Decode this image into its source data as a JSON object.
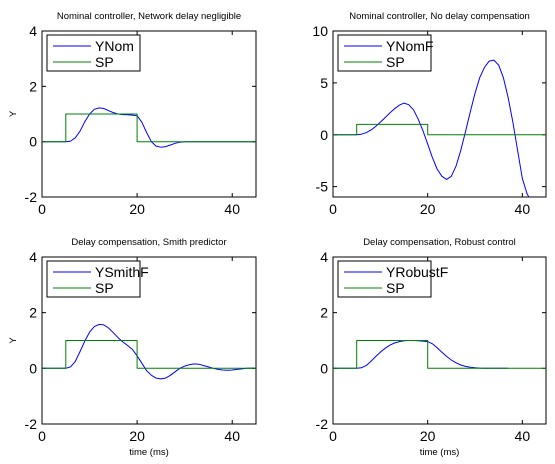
{
  "chart_data": [
    {
      "type": "line",
      "title": "Nominal controller, Network delay negligible",
      "xlabel": "",
      "ylabel": "Y",
      "xlim": [
        0,
        45
      ],
      "ylim": [
        -2,
        4
      ],
      "xticks": [
        0,
        20,
        40
      ],
      "yticks": [
        -2,
        0,
        2,
        4
      ],
      "grid": false,
      "legend": "top-left",
      "series": [
        {
          "name": "YNom",
          "color": "#0000ff",
          "x": [
            0,
            5,
            6,
            7,
            8,
            9,
            10,
            11,
            12,
            13,
            14,
            15,
            16,
            17,
            18,
            19,
            20,
            21,
            22,
            23,
            24,
            25,
            26,
            27,
            28,
            29,
            30,
            32,
            34,
            36,
            38,
            40,
            42,
            45
          ],
          "y": [
            0,
            0,
            0.02,
            0.14,
            0.38,
            0.72,
            1.0,
            1.17,
            1.22,
            1.2,
            1.12,
            1.05,
            1.0,
            0.98,
            0.97,
            0.96,
            0.94,
            0.7,
            0.33,
            0.0,
            -0.16,
            -0.2,
            -0.18,
            -0.12,
            -0.06,
            -0.02,
            0.0,
            0.0,
            0.0,
            0.0,
            0.0,
            0.0,
            0.0,
            0.0
          ]
        },
        {
          "name": "SP",
          "color": "#008000",
          "x": [
            0,
            5,
            5,
            20,
            20,
            45
          ],
          "y": [
            0,
            0,
            1,
            1,
            0,
            0
          ]
        }
      ]
    },
    {
      "type": "line",
      "title": "Nominal controller, No delay compensation",
      "xlabel": "",
      "ylabel": "",
      "xlim": [
        0,
        45
      ],
      "ylim": [
        -6,
        10
      ],
      "xticks": [
        0,
        20,
        40
      ],
      "yticks": [
        -5,
        0,
        5,
        10
      ],
      "grid": false,
      "legend": "top-left",
      "series": [
        {
          "name": "YNomF",
          "color": "#0000ff",
          "x": [
            0,
            5,
            6,
            7,
            8,
            9,
            10,
            11,
            12,
            13,
            14,
            15,
            16,
            17,
            18,
            19,
            20,
            21,
            22,
            23,
            24,
            25,
            26,
            27,
            28,
            29,
            30,
            31,
            32,
            33,
            34,
            35,
            36,
            37,
            38,
            39,
            40,
            41,
            42
          ],
          "y": [
            0,
            0,
            0.05,
            0.2,
            0.45,
            0.8,
            1.2,
            1.65,
            2.1,
            2.5,
            2.85,
            3.05,
            2.9,
            2.4,
            1.5,
            0.4,
            -0.9,
            -2.2,
            -3.3,
            -4.0,
            -4.3,
            -4.0,
            -3.0,
            -1.5,
            0.3,
            2.2,
            4.0,
            5.5,
            6.5,
            7.1,
            7.2,
            6.7,
            5.5,
            3.6,
            1.2,
            -1.5,
            -4.2,
            -5.7,
            -6.5
          ]
        },
        {
          "name": "SP",
          "color": "#008000",
          "x": [
            0,
            5,
            5,
            20,
            20,
            45
          ],
          "y": [
            0,
            0,
            1,
            1,
            0,
            0
          ]
        }
      ]
    },
    {
      "type": "line",
      "title": "Delay compensation, Smith predictor",
      "xlabel": "time (ms)",
      "ylabel": "Y",
      "xlim": [
        0,
        45
      ],
      "ylim": [
        -2,
        4
      ],
      "xticks": [
        0,
        20,
        40
      ],
      "yticks": [
        -2,
        0,
        2,
        4
      ],
      "grid": false,
      "legend": "top-left",
      "series": [
        {
          "name": "YSmithF",
          "color": "#0000ff",
          "x": [
            0,
            5,
            6,
            7,
            8,
            9,
            10,
            11,
            12,
            13,
            14,
            15,
            16,
            17,
            18,
            19,
            20,
            21,
            22,
            23,
            24,
            25,
            26,
            27,
            28,
            29,
            30,
            31,
            32,
            33,
            34,
            35,
            36,
            37,
            38,
            39,
            40,
            41,
            42,
            43,
            44,
            45
          ],
          "y": [
            0,
            0,
            0.05,
            0.25,
            0.6,
            0.98,
            1.3,
            1.5,
            1.58,
            1.56,
            1.45,
            1.28,
            1.1,
            0.95,
            0.82,
            0.68,
            0.45,
            0.18,
            -0.08,
            -0.25,
            -0.35,
            -0.38,
            -0.35,
            -0.25,
            -0.12,
            0.0,
            0.08,
            0.13,
            0.16,
            0.15,
            0.1,
            0.05,
            0.0,
            -0.04,
            -0.06,
            -0.07,
            -0.06,
            -0.04,
            -0.02,
            0.0,
            0.01,
            0.0
          ]
        },
        {
          "name": "SP",
          "color": "#008000",
          "x": [
            0,
            5,
            5,
            20,
            20,
            45
          ],
          "y": [
            0,
            0,
            1,
            1,
            0,
            0
          ]
        }
      ]
    },
    {
      "type": "line",
      "title": "Delay compensation, Robust control",
      "xlabel": "time (ms)",
      "ylabel": "",
      "xlim": [
        0,
        45
      ],
      "ylim": [
        -2,
        4
      ],
      "xticks": [
        0,
        20,
        40
      ],
      "yticks": [
        -2,
        0,
        2,
        4
      ],
      "grid": false,
      "legend": "top-left",
      "series": [
        {
          "name": "YRobustF",
          "color": "#0000ff",
          "x": [
            0,
            5,
            6,
            7,
            8,
            9,
            10,
            11,
            12,
            13,
            14,
            15,
            16,
            17,
            18,
            19,
            20,
            21,
            22,
            23,
            24,
            25,
            26,
            27,
            28,
            29,
            30,
            31,
            32,
            33,
            34,
            35,
            36,
            37
          ],
          "y": [
            0,
            0,
            0.02,
            0.1,
            0.25,
            0.42,
            0.58,
            0.72,
            0.83,
            0.91,
            0.96,
            0.99,
            1.0,
            1.0,
            0.99,
            0.98,
            0.96,
            0.88,
            0.74,
            0.58,
            0.43,
            0.3,
            0.2,
            0.12,
            0.07,
            0.04,
            0.02,
            0.01,
            0.0,
            0.0,
            0.0,
            0.0,
            0.0,
            0.0
          ]
        },
        {
          "name": "SP",
          "color": "#008000",
          "x": [
            0,
            5,
            5,
            20,
            20,
            45
          ],
          "y": [
            0,
            0,
            1,
            1,
            0,
            0
          ]
        }
      ]
    }
  ]
}
